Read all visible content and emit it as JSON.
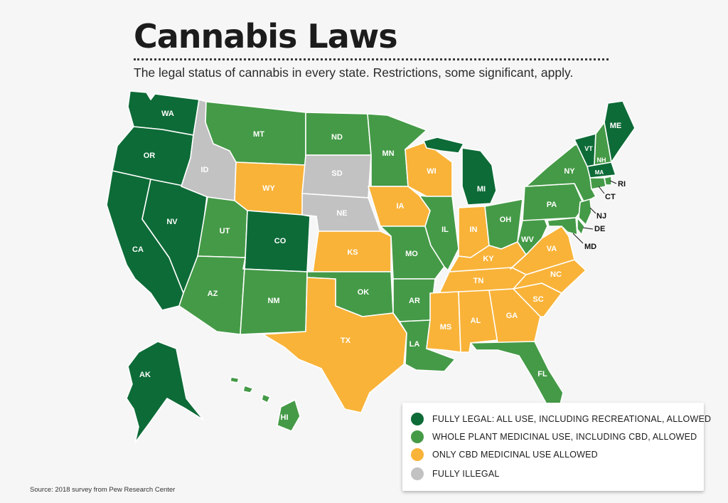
{
  "header": {
    "title": "Cannabis Laws",
    "subtitle": "The legal status of cannabis in every state. Restrictions, some significant, apply."
  },
  "colors": {
    "legal": "#0d6b37",
    "medicinal": "#459a47",
    "cbd": "#f9b339",
    "illegal": "#c2c2c2"
  },
  "legend": [
    {
      "key": "legal",
      "label": "FULLY LEGAL: ALL USE, INCLUDING RECREATIONAL, ALLOWED"
    },
    {
      "key": "medicinal",
      "label": "WHOLE PLANT MEDICINAL USE, INCLUDING CBD, ALLOWED"
    },
    {
      "key": "cbd",
      "label": "ONLY CBD MEDICINAL USE ALLOWED"
    },
    {
      "key": "illegal",
      "label": "FULLY ILLEGAL"
    }
  ],
  "states": {
    "WA": "legal",
    "OR": "legal",
    "CA": "legal",
    "NV": "legal",
    "CO": "legal",
    "AK": "legal",
    "MI": "legal",
    "ME": "legal",
    "VT": "legal",
    "MA": "legal",
    "ID": "illegal",
    "SD": "illegal",
    "NE": "illegal",
    "WY": "cbd",
    "KS": "cbd",
    "TX": "cbd",
    "IA": "cbd",
    "WI": "cbd",
    "IN": "cbd",
    "KY": "cbd",
    "TN": "cbd",
    "MS": "cbd",
    "AL": "cbd",
    "GA": "cbd",
    "SC": "cbd",
    "NC": "cbd",
    "VA": "cbd",
    "MT": "medicinal",
    "ND": "medicinal",
    "MN": "medicinal",
    "UT": "medicinal",
    "AZ": "medicinal",
    "NM": "medicinal",
    "OK": "medicinal",
    "MO": "medicinal",
    "AR": "medicinal",
    "LA": "medicinal",
    "IL": "medicinal",
    "OH": "medicinal",
    "WV": "medicinal",
    "PA": "medicinal",
    "NY": "medicinal",
    "NH": "medicinal",
    "FL": "medicinal",
    "HI": "medicinal",
    "NJ": "medicinal",
    "CT": "medicinal",
    "RI": "medicinal",
    "DE": "medicinal",
    "MD": "medicinal"
  },
  "labels": {
    "WA": "WA",
    "OR": "OR",
    "CA": "CA",
    "NV": "NV",
    "ID": "ID",
    "MT": "MT",
    "WY": "WY",
    "UT": "UT",
    "CO": "CO",
    "AZ": "AZ",
    "NM": "NM",
    "ND": "ND",
    "SD": "SD",
    "NE": "NE",
    "KS": "KS",
    "OK": "OK",
    "TX": "TX",
    "MN": "MN",
    "IA": "IA",
    "MO": "MO",
    "AR": "AR",
    "LA": "LA",
    "WI": "WI",
    "IL": "IL",
    "MI": "MI",
    "IN": "IN",
    "OH": "OH",
    "KY": "KY",
    "TN": "TN",
    "MS": "MS",
    "AL": "AL",
    "GA": "GA",
    "FL": "FL",
    "SC": "SC",
    "NC": "NC",
    "VA": "VA",
    "WV": "WV",
    "PA": "PA",
    "NY": "NY",
    "VT": "VT",
    "NH": "NH",
    "ME": "ME",
    "MA": "MA",
    "RI": "RI",
    "CT": "CT",
    "NJ": "NJ",
    "DE": "DE",
    "MD": "MD",
    "AK": "AK",
    "HI": "HI"
  },
  "source": "Source: 2018 survey from Pew Research Center"
}
